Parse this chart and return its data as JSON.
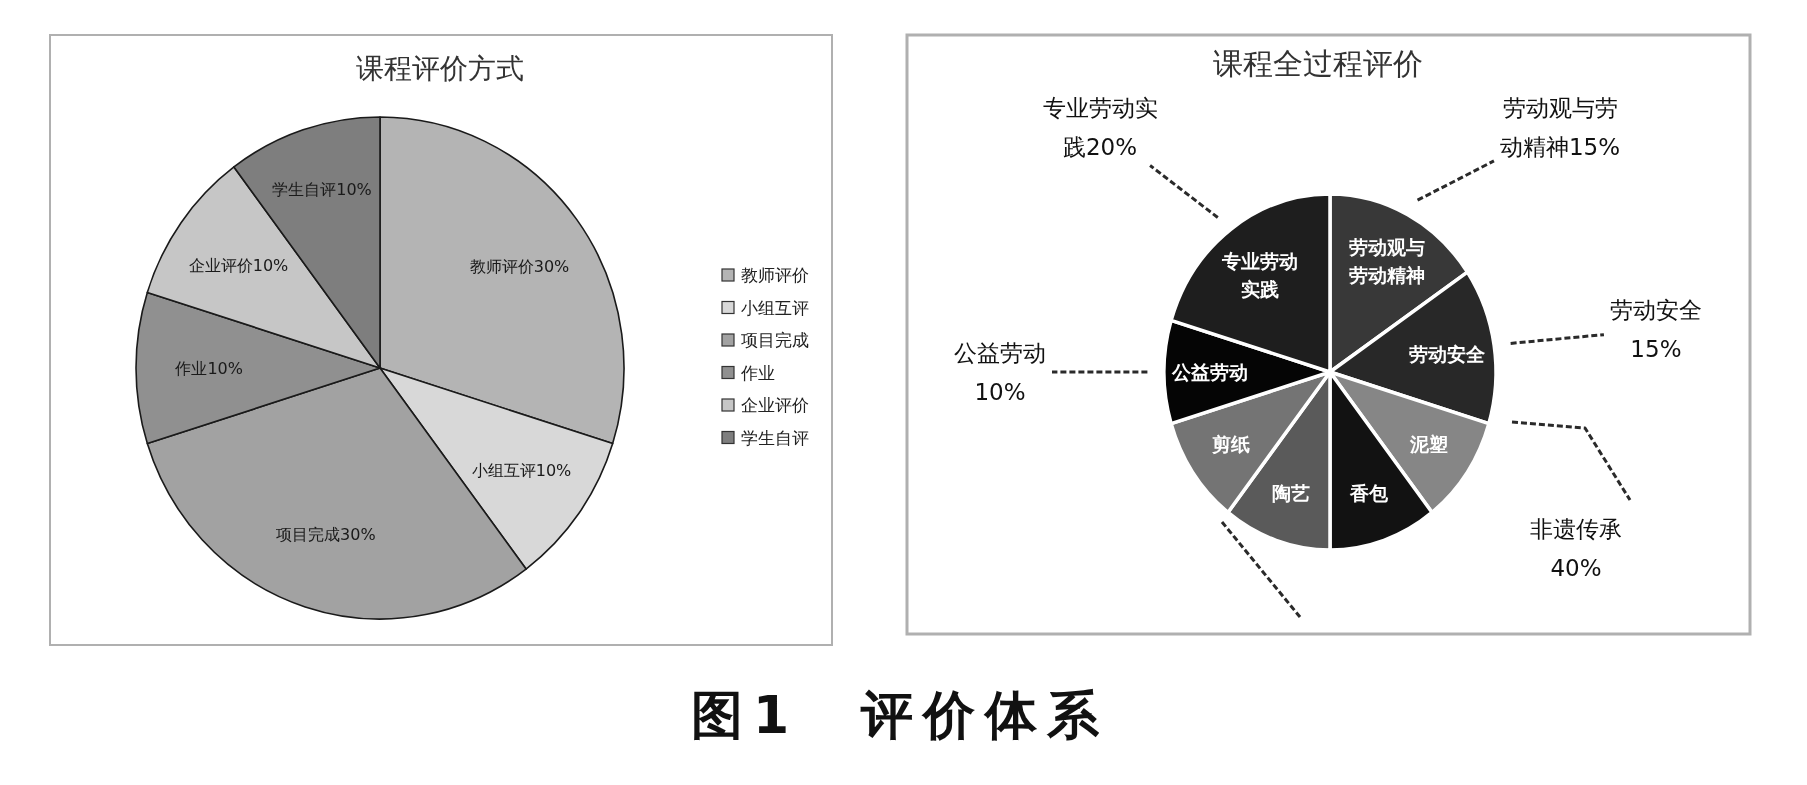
{
  "chart_data": [
    {
      "type": "pie",
      "title": "课程评价方式",
      "categories": [
        "教师评价",
        "小组互评",
        "项目完成",
        "作业",
        "企业评价",
        "学生自评"
      ],
      "values": [
        30,
        10,
        30,
        10,
        10,
        10
      ],
      "colors": [
        "#b4b4b4",
        "#d8d8d8",
        "#a2a2a2",
        "#909090",
        "#c6c6c6",
        "#7e7e7e"
      ],
      "value_labels": [
        "教师评价30%",
        "小组互评10%",
        "项目完成30%",
        "作业10%",
        "企业评价10%",
        "学生自评10%"
      ],
      "legend": "right",
      "annotations": [
        "图1　评价体系"
      ]
    },
    {
      "type": "pie",
      "title": "课程全过程评价",
      "categories": [
        "劳动观与劳动精神",
        "劳动安全",
        "泥塑",
        "香包",
        "陶艺",
        "剪纸",
        "公益劳动",
        "专业劳动实践"
      ],
      "values": [
        15,
        15,
        10,
        10,
        10,
        10,
        10,
        20
      ],
      "colors": [
        "#383838",
        "#282828",
        "#868686",
        "#121212",
        "#5a5a5a",
        "#747474",
        "#050505",
        "#1e1e1e"
      ],
      "value_labels": [
        "劳动观与劳动精神15%",
        "劳动安全15%",
        null,
        null,
        null,
        null,
        "公益劳动10%",
        "专业劳动实践20%"
      ],
      "annotations": [
        "非遗传承40%"
      ]
    }
  ]
}
